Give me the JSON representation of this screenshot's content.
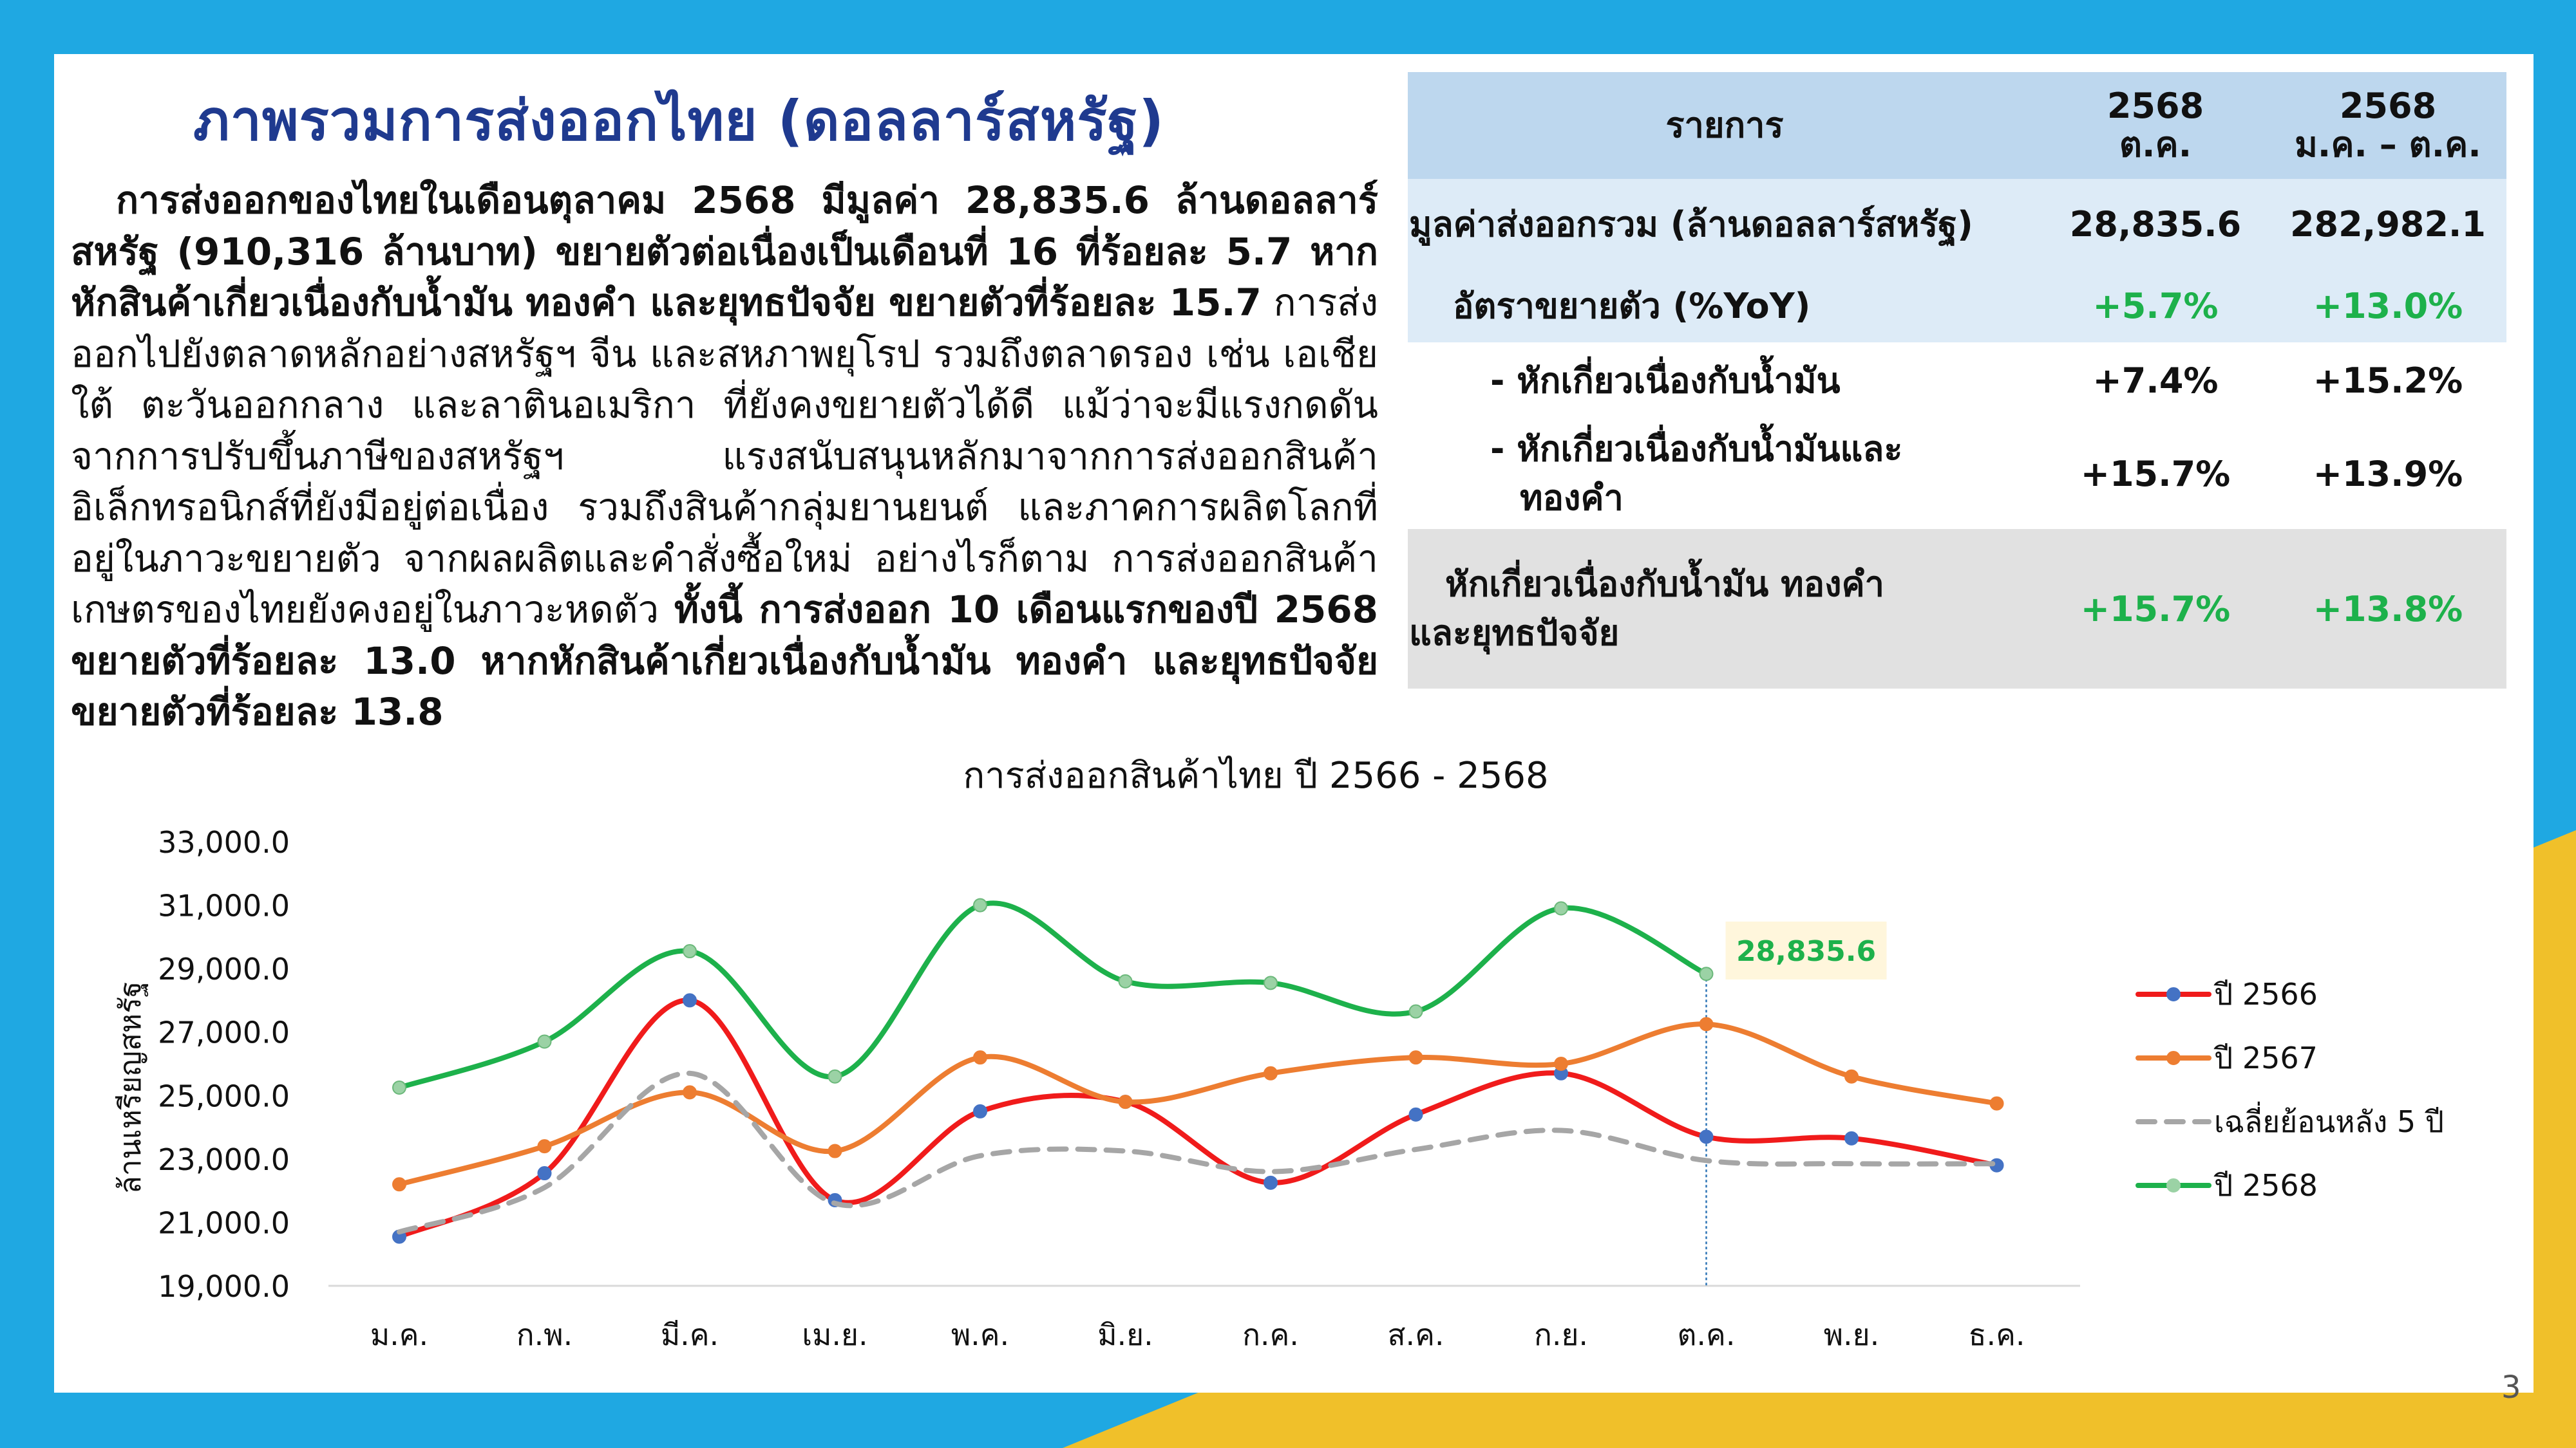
{
  "page": {
    "title": "ภาพรวมการส่งออกไทย (ดอลลาร์สหรัฐ)",
    "page_number": "3",
    "colors": {
      "background": "#1FA8E2",
      "accent_yellow": "#F0C02A",
      "title": "#1F3A8F",
      "positive": "#1DB14B"
    }
  },
  "summary": {
    "part1_bold": "การส่งออกของไทยในเดือนตุลาคม 2568 มีมูลค่า 28,835.6 ล้านดอลลาร์สหรัฐ (910,316 ล้านบาท) ขยายตัวต่อเนื่องเป็นเดือนที่ 16 ที่ร้อยละ 5.7 หากหักสินค้าเกี่ยวเนื่องกับน้ำมัน ทองคำ และยุทธปัจจัย ขยายตัวที่ร้อยละ 15.7",
    "part2": "การส่งออกไปยังตลาดหลักอย่างสหรัฐฯ จีน และสหภาพยุโรป รวมถึงตลาดรอง เช่น เอเชียใต้ ตะวันออกกลาง และลาตินอเมริกา ที่ยังคงขยายตัวได้ดี แม้ว่าจะมีแรงกดดันจากการปรับขึ้นภาษีของสหรัฐฯ แรงสนับสนุนหลักมาจากการส่งออกสินค้าอิเล็กทรอนิกส์ที่ยังมีอยู่ต่อเนื่อง รวมถึงสินค้ากลุ่มยานยนต์ และภาคการผลิตโลกที่อยู่ในภาวะขยายตัว จากผลผลิตและคำสั่งซื้อใหม่ อย่างไรก็ตาม การส่งออกสินค้าเกษตรของไทยยังคงอยู่ในภาวะหดตัว",
    "part3_bold": "ทั้งนี้ การส่งออก 10 เดือนแรกของปี 2568 ขยายตัวที่ร้อยละ 13.0 หากหักสินค้าเกี่ยวเนื่องกับน้ำมัน ทองคำ และยุทธปัจจัย ขยายตัวที่ร้อยละ 13.8"
  },
  "table": {
    "header_item": "รายการ",
    "col1_line1": "2568",
    "col1_line2": "ต.ค.",
    "col2_line1": "2568",
    "col2_line2": "ม.ค. – ต.ค.",
    "rows": [
      {
        "label": "มูลค่าส่งออกรวม (ล้านดอลลาร์สหรัฐ)",
        "v1": "28,835.6",
        "v2": "282,982.1"
      },
      {
        "label": "อัตราขยายตัว (%YoY)",
        "v1": "+5.7%",
        "v2": "+13.0%"
      },
      {
        "label": "- หักเกี่ยวเนื่องกับน้ำมัน",
        "v1": "+7.4%",
        "v2": "+15.2%"
      },
      {
        "label": "- หักเกี่ยวเนื่องกับน้ำมันและ",
        "label2": "ทองคำ",
        "v1": "+15.7%",
        "v2": "+13.9%"
      },
      {
        "label": "หักเกี่ยวเนื่องกับน้ำมัน ทองคำ",
        "label2": "และยุทธปัจจัย",
        "v1": "+15.7%",
        "v2": "+13.8%"
      }
    ]
  },
  "chart_data": {
    "type": "line",
    "title": "การส่งออกสินค้าไทย ปี 2566 - 2568",
    "ylabel": "ล้านเหรียญสหรัฐ",
    "xlabel": "",
    "ylim": [
      19000,
      33000
    ],
    "yticks": [
      "19,000.0",
      "21,000.0",
      "23,000.0",
      "25,000.0",
      "27,000.0",
      "29,000.0",
      "31,000.0",
      "33,000.0"
    ],
    "categories": [
      "ม.ค.",
      "ก.พ.",
      "มี.ค.",
      "เม.ย.",
      "พ.ค.",
      "มิ.ย.",
      "ก.ค.",
      "ส.ค.",
      "ก.ย.",
      "ต.ค.",
      "พ.ย.",
      "ธ.ค."
    ],
    "grid": false,
    "legend_position": "right",
    "callout": {
      "label": "28,835.6",
      "category": "ต.ค."
    },
    "series": [
      {
        "name": "ปี 2566",
        "color": "#F01B1B",
        "marker": "#4472C4",
        "dashed": false,
        "values": [
          20550,
          22550,
          28000,
          21700,
          24500,
          24800,
          22250,
          24400,
          25700,
          23700,
          23650,
          22800
        ]
      },
      {
        "name": "ปี 2567",
        "color": "#ED7D31",
        "marker": "#ED7D31",
        "dashed": false,
        "values": [
          22200,
          23400,
          25100,
          23250,
          26200,
          24800,
          25700,
          26200,
          26000,
          27250,
          25600,
          24750
        ]
      },
      {
        "name": "เฉลี่ยย้อนหลัง 5 ปี",
        "color": "#A6A6A6",
        "marker": null,
        "dashed": true,
        "values": [
          20700,
          22100,
          25700,
          21600,
          23100,
          23250,
          22600,
          23300,
          23900,
          22950,
          22850,
          22850
        ]
      },
      {
        "name": "ปี 2568",
        "color": "#1DB14B",
        "marker": "#9BD2A5",
        "dashed": false,
        "values": [
          25250,
          26700,
          29550,
          25600,
          31000,
          28600,
          28550,
          27650,
          30900,
          28835.6,
          null,
          null
        ]
      }
    ]
  }
}
